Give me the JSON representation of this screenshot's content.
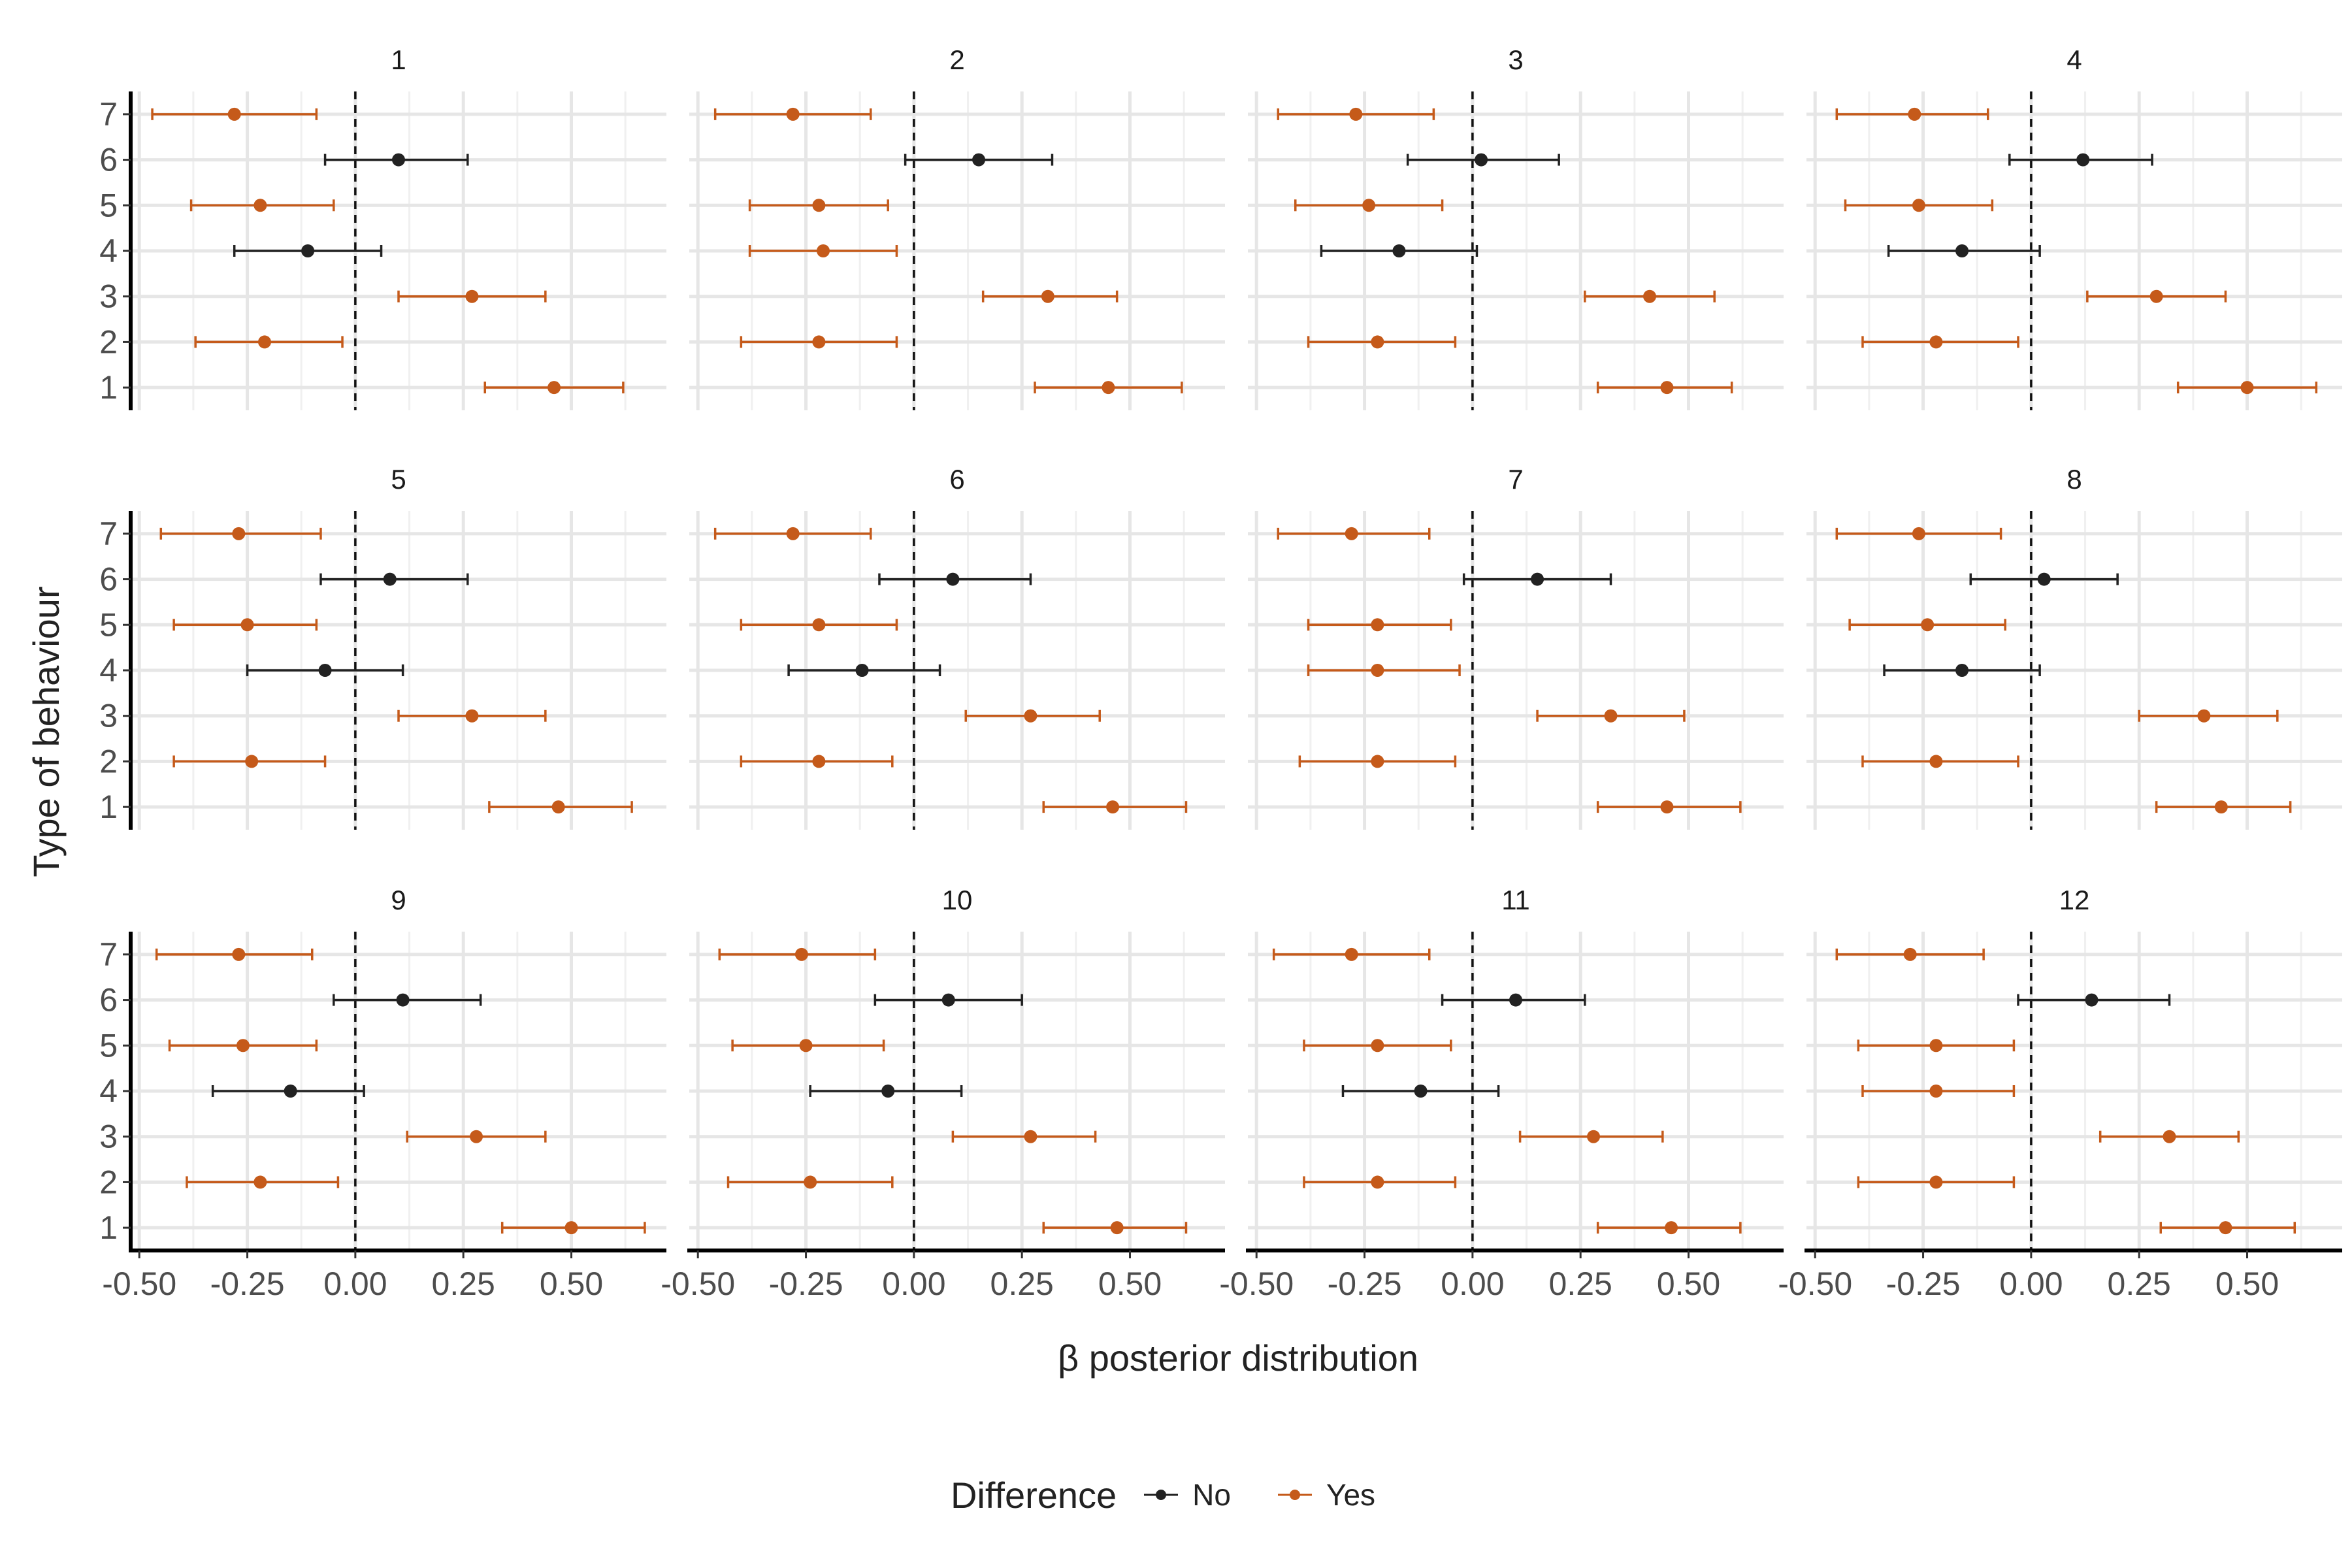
{
  "chart_data": {
    "type": "forest",
    "xlabel": "β posterior distribution",
    "ylabel": "Type of behaviour",
    "xlim": [
      -0.52,
      0.72
    ],
    "xticks": [
      -0.5,
      -0.25,
      0.0,
      0.25,
      0.5
    ],
    "xtick_labels": [
      "-0.50",
      "-0.25",
      "0.00",
      "0.25",
      "0.50"
    ],
    "ylim": [
      0.5,
      7.5
    ],
    "yticks": [
      1,
      2,
      3,
      4,
      5,
      6,
      7
    ],
    "ytick_labels": [
      "1",
      "2",
      "3",
      "4",
      "5",
      "6",
      "7"
    ],
    "reference_line_x": 0,
    "legend": {
      "title": "Difference",
      "entries": [
        {
          "label": "No",
          "color": "#222222"
        },
        {
          "label": "Yes",
          "color": "#C55A1A"
        }
      ]
    },
    "panels": [
      {
        "title": "1",
        "rows": [
          {
            "y": 7,
            "est": -0.28,
            "lo": -0.47,
            "hi": -0.09,
            "diff": "Yes"
          },
          {
            "y": 6,
            "est": 0.1,
            "lo": -0.07,
            "hi": 0.26,
            "diff": "No"
          },
          {
            "y": 5,
            "est": -0.22,
            "lo": -0.38,
            "hi": -0.05,
            "diff": "Yes"
          },
          {
            "y": 4,
            "est": -0.11,
            "lo": -0.28,
            "hi": 0.06,
            "diff": "No"
          },
          {
            "y": 3,
            "est": 0.27,
            "lo": 0.1,
            "hi": 0.44,
            "diff": "Yes"
          },
          {
            "y": 2,
            "est": -0.21,
            "lo": -0.37,
            "hi": -0.03,
            "diff": "Yes"
          },
          {
            "y": 1,
            "est": 0.46,
            "lo": 0.3,
            "hi": 0.62,
            "diff": "Yes"
          }
        ]
      },
      {
        "title": "2",
        "rows": [
          {
            "y": 7,
            "est": -0.28,
            "lo": -0.46,
            "hi": -0.1,
            "diff": "Yes"
          },
          {
            "y": 6,
            "est": 0.15,
            "lo": -0.02,
            "hi": 0.32,
            "diff": "No"
          },
          {
            "y": 5,
            "est": -0.22,
            "lo": -0.38,
            "hi": -0.06,
            "diff": "Yes"
          },
          {
            "y": 4,
            "est": -0.21,
            "lo": -0.38,
            "hi": -0.04,
            "diff": "Yes"
          },
          {
            "y": 3,
            "est": 0.31,
            "lo": 0.16,
            "hi": 0.47,
            "diff": "Yes"
          },
          {
            "y": 2,
            "est": -0.22,
            "lo": -0.4,
            "hi": -0.04,
            "diff": "Yes"
          },
          {
            "y": 1,
            "est": 0.45,
            "lo": 0.28,
            "hi": 0.62,
            "diff": "Yes"
          }
        ]
      },
      {
        "title": "3",
        "rows": [
          {
            "y": 7,
            "est": -0.27,
            "lo": -0.45,
            "hi": -0.09,
            "diff": "Yes"
          },
          {
            "y": 6,
            "est": 0.02,
            "lo": -0.15,
            "hi": 0.2,
            "diff": "No"
          },
          {
            "y": 5,
            "est": -0.24,
            "lo": -0.41,
            "hi": -0.07,
            "diff": "Yes"
          },
          {
            "y": 4,
            "est": -0.17,
            "lo": -0.35,
            "hi": 0.01,
            "diff": "No"
          },
          {
            "y": 3,
            "est": 0.41,
            "lo": 0.26,
            "hi": 0.56,
            "diff": "Yes"
          },
          {
            "y": 2,
            "est": -0.22,
            "lo": -0.38,
            "hi": -0.04,
            "diff": "Yes"
          },
          {
            "y": 1,
            "est": 0.45,
            "lo": 0.29,
            "hi": 0.6,
            "diff": "Yes"
          }
        ]
      },
      {
        "title": "4",
        "rows": [
          {
            "y": 7,
            "est": -0.27,
            "lo": -0.45,
            "hi": -0.1,
            "diff": "Yes"
          },
          {
            "y": 6,
            "est": 0.12,
            "lo": -0.05,
            "hi": 0.28,
            "diff": "No"
          },
          {
            "y": 5,
            "est": -0.26,
            "lo": -0.43,
            "hi": -0.09,
            "diff": "Yes"
          },
          {
            "y": 4,
            "est": -0.16,
            "lo": -0.33,
            "hi": 0.02,
            "diff": "No"
          },
          {
            "y": 3,
            "est": 0.29,
            "lo": 0.13,
            "hi": 0.45,
            "diff": "Yes"
          },
          {
            "y": 2,
            "est": -0.22,
            "lo": -0.39,
            "hi": -0.03,
            "diff": "Yes"
          },
          {
            "y": 1,
            "est": 0.5,
            "lo": 0.34,
            "hi": 0.66,
            "diff": "Yes"
          }
        ]
      },
      {
        "title": "5",
        "rows": [
          {
            "y": 7,
            "est": -0.27,
            "lo": -0.45,
            "hi": -0.08,
            "diff": "Yes"
          },
          {
            "y": 6,
            "est": 0.08,
            "lo": -0.08,
            "hi": 0.26,
            "diff": "No"
          },
          {
            "y": 5,
            "est": -0.25,
            "lo": -0.42,
            "hi": -0.09,
            "diff": "Yes"
          },
          {
            "y": 4,
            "est": -0.07,
            "lo": -0.25,
            "hi": 0.11,
            "diff": "No"
          },
          {
            "y": 3,
            "est": 0.27,
            "lo": 0.1,
            "hi": 0.44,
            "diff": "Yes"
          },
          {
            "y": 2,
            "est": -0.24,
            "lo": -0.42,
            "hi": -0.07,
            "diff": "Yes"
          },
          {
            "y": 1,
            "est": 0.47,
            "lo": 0.31,
            "hi": 0.64,
            "diff": "Yes"
          }
        ]
      },
      {
        "title": "6",
        "rows": [
          {
            "y": 7,
            "est": -0.28,
            "lo": -0.46,
            "hi": -0.1,
            "diff": "Yes"
          },
          {
            "y": 6,
            "est": 0.09,
            "lo": -0.08,
            "hi": 0.27,
            "diff": "No"
          },
          {
            "y": 5,
            "est": -0.22,
            "lo": -0.4,
            "hi": -0.04,
            "diff": "Yes"
          },
          {
            "y": 4,
            "est": -0.12,
            "lo": -0.29,
            "hi": 0.06,
            "diff": "No"
          },
          {
            "y": 3,
            "est": 0.27,
            "lo": 0.12,
            "hi": 0.43,
            "diff": "Yes"
          },
          {
            "y": 2,
            "est": -0.22,
            "lo": -0.4,
            "hi": -0.05,
            "diff": "Yes"
          },
          {
            "y": 1,
            "est": 0.46,
            "lo": 0.3,
            "hi": 0.63,
            "diff": "Yes"
          }
        ]
      },
      {
        "title": "7",
        "rows": [
          {
            "y": 7,
            "est": -0.28,
            "lo": -0.45,
            "hi": -0.1,
            "diff": "Yes"
          },
          {
            "y": 6,
            "est": 0.15,
            "lo": -0.02,
            "hi": 0.32,
            "diff": "No"
          },
          {
            "y": 5,
            "est": -0.22,
            "lo": -0.38,
            "hi": -0.05,
            "diff": "Yes"
          },
          {
            "y": 4,
            "est": -0.22,
            "lo": -0.38,
            "hi": -0.03,
            "diff": "Yes"
          },
          {
            "y": 3,
            "est": 0.32,
            "lo": 0.15,
            "hi": 0.49,
            "diff": "Yes"
          },
          {
            "y": 2,
            "est": -0.22,
            "lo": -0.4,
            "hi": -0.04,
            "diff": "Yes"
          },
          {
            "y": 1,
            "est": 0.45,
            "lo": 0.29,
            "hi": 0.62,
            "diff": "Yes"
          }
        ]
      },
      {
        "title": "8",
        "rows": [
          {
            "y": 7,
            "est": -0.26,
            "lo": -0.45,
            "hi": -0.07,
            "diff": "Yes"
          },
          {
            "y": 6,
            "est": 0.03,
            "lo": -0.14,
            "hi": 0.2,
            "diff": "No"
          },
          {
            "y": 5,
            "est": -0.24,
            "lo": -0.42,
            "hi": -0.06,
            "diff": "Yes"
          },
          {
            "y": 4,
            "est": -0.16,
            "lo": -0.34,
            "hi": 0.02,
            "diff": "No"
          },
          {
            "y": 3,
            "est": 0.4,
            "lo": 0.25,
            "hi": 0.57,
            "diff": "Yes"
          },
          {
            "y": 2,
            "est": -0.22,
            "lo": -0.39,
            "hi": -0.03,
            "diff": "Yes"
          },
          {
            "y": 1,
            "est": 0.44,
            "lo": 0.29,
            "hi": 0.6,
            "diff": "Yes"
          }
        ]
      },
      {
        "title": "9",
        "rows": [
          {
            "y": 7,
            "est": -0.27,
            "lo": -0.46,
            "hi": -0.1,
            "diff": "Yes"
          },
          {
            "y": 6,
            "est": 0.11,
            "lo": -0.05,
            "hi": 0.29,
            "diff": "No"
          },
          {
            "y": 5,
            "est": -0.26,
            "lo": -0.43,
            "hi": -0.09,
            "diff": "Yes"
          },
          {
            "y": 4,
            "est": -0.15,
            "lo": -0.33,
            "hi": 0.02,
            "diff": "No"
          },
          {
            "y": 3,
            "est": 0.28,
            "lo": 0.12,
            "hi": 0.44,
            "diff": "Yes"
          },
          {
            "y": 2,
            "est": -0.22,
            "lo": -0.39,
            "hi": -0.04,
            "diff": "Yes"
          },
          {
            "y": 1,
            "est": 0.5,
            "lo": 0.34,
            "hi": 0.67,
            "diff": "Yes"
          }
        ]
      },
      {
        "title": "10",
        "rows": [
          {
            "y": 7,
            "est": -0.26,
            "lo": -0.45,
            "hi": -0.09,
            "diff": "Yes"
          },
          {
            "y": 6,
            "est": 0.08,
            "lo": -0.09,
            "hi": 0.25,
            "diff": "No"
          },
          {
            "y": 5,
            "est": -0.25,
            "lo": -0.42,
            "hi": -0.07,
            "diff": "Yes"
          },
          {
            "y": 4,
            "est": -0.06,
            "lo": -0.24,
            "hi": 0.11,
            "diff": "No"
          },
          {
            "y": 3,
            "est": 0.27,
            "lo": 0.09,
            "hi": 0.42,
            "diff": "Yes"
          },
          {
            "y": 2,
            "est": -0.24,
            "lo": -0.43,
            "hi": -0.05,
            "diff": "Yes"
          },
          {
            "y": 1,
            "est": 0.47,
            "lo": 0.3,
            "hi": 0.63,
            "diff": "Yes"
          }
        ]
      },
      {
        "title": "11",
        "rows": [
          {
            "y": 7,
            "est": -0.28,
            "lo": -0.46,
            "hi": -0.1,
            "diff": "Yes"
          },
          {
            "y": 6,
            "est": 0.1,
            "lo": -0.07,
            "hi": 0.26,
            "diff": "No"
          },
          {
            "y": 5,
            "est": -0.22,
            "lo": -0.39,
            "hi": -0.05,
            "diff": "Yes"
          },
          {
            "y": 4,
            "est": -0.12,
            "lo": -0.3,
            "hi": 0.06,
            "diff": "No"
          },
          {
            "y": 3,
            "est": 0.28,
            "lo": 0.11,
            "hi": 0.44,
            "diff": "Yes"
          },
          {
            "y": 2,
            "est": -0.22,
            "lo": -0.39,
            "hi": -0.04,
            "diff": "Yes"
          },
          {
            "y": 1,
            "est": 0.46,
            "lo": 0.29,
            "hi": 0.62,
            "diff": "Yes"
          }
        ]
      },
      {
        "title": "12",
        "rows": [
          {
            "y": 7,
            "est": -0.28,
            "lo": -0.45,
            "hi": -0.11,
            "diff": "Yes"
          },
          {
            "y": 6,
            "est": 0.14,
            "lo": -0.03,
            "hi": 0.32,
            "diff": "No"
          },
          {
            "y": 5,
            "est": -0.22,
            "lo": -0.4,
            "hi": -0.04,
            "diff": "Yes"
          },
          {
            "y": 4,
            "est": -0.22,
            "lo": -0.39,
            "hi": -0.04,
            "diff": "Yes"
          },
          {
            "y": 3,
            "est": 0.32,
            "lo": 0.16,
            "hi": 0.48,
            "diff": "Yes"
          },
          {
            "y": 2,
            "est": -0.22,
            "lo": -0.4,
            "hi": -0.04,
            "diff": "Yes"
          },
          {
            "y": 1,
            "est": 0.45,
            "lo": 0.3,
            "hi": 0.61,
            "diff": "Yes"
          }
        ]
      }
    ]
  }
}
